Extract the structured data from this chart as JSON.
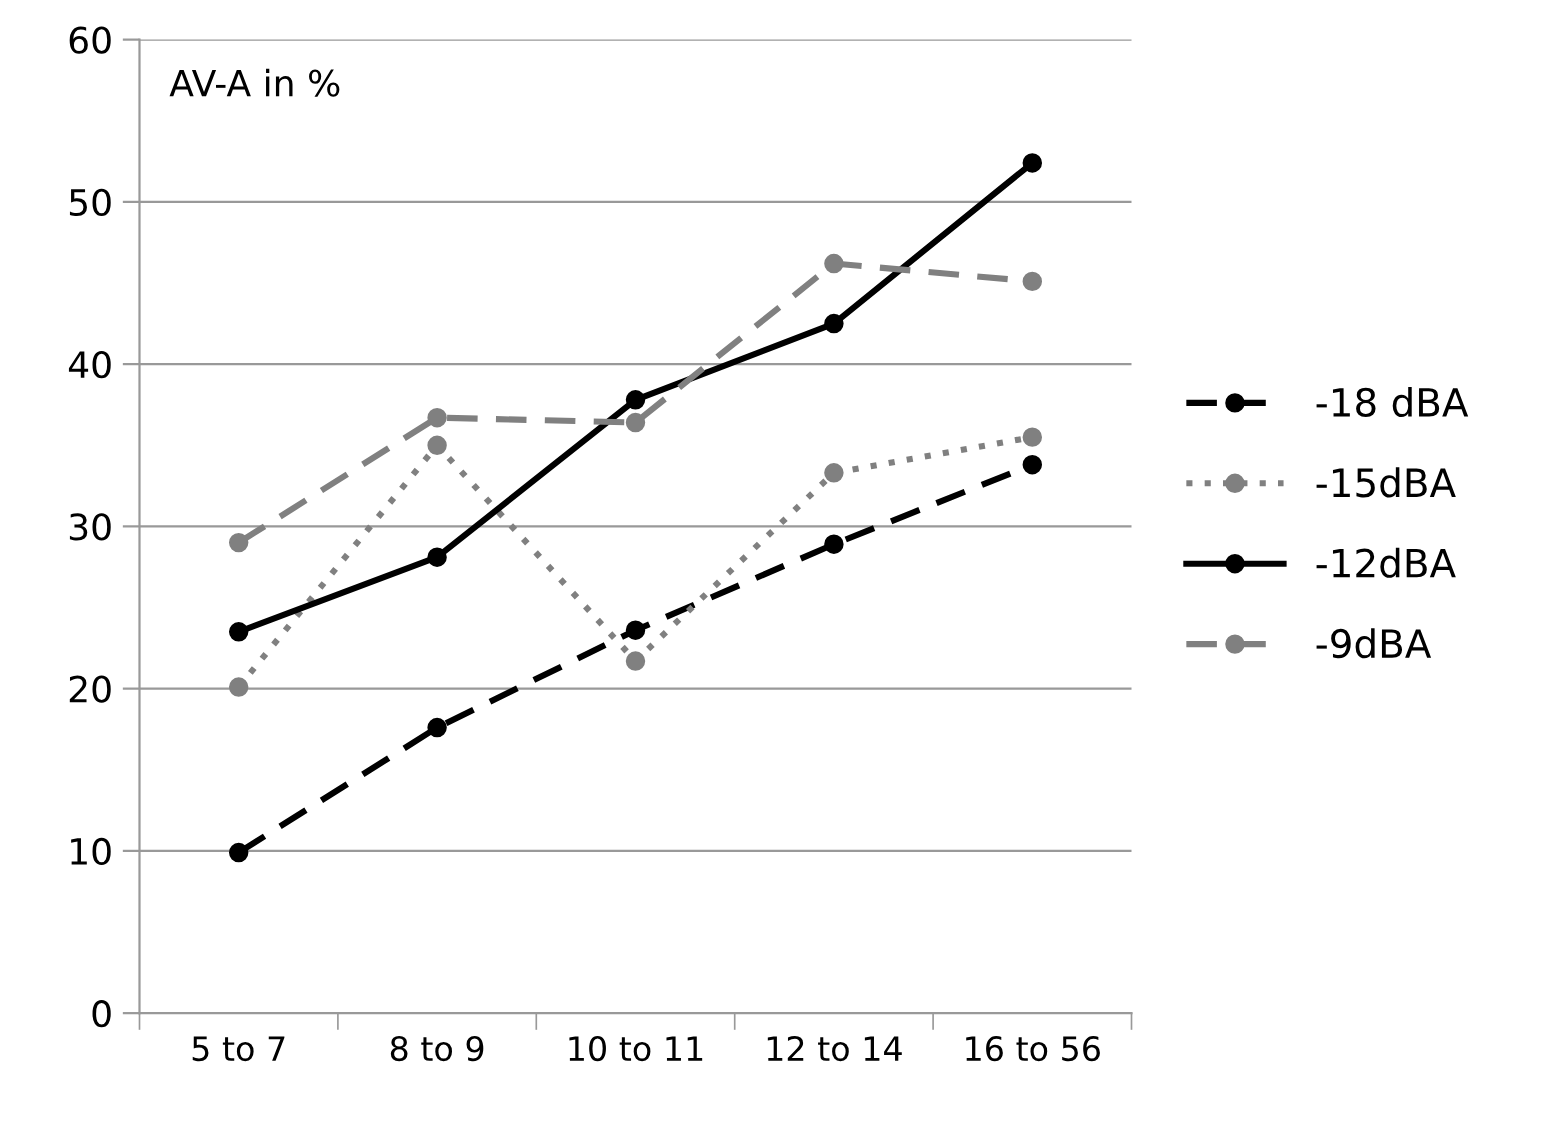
{
  "chart_data": {
    "type": "line",
    "categories": [
      "5 to 7",
      "8 to 9",
      "10 to 11",
      "12 to 14",
      "16 to 56"
    ],
    "series": [
      {
        "name": "-18 dBA",
        "color": "#000000",
        "line_style": "dashed",
        "values": [
          9.9,
          17.6,
          23.6,
          28.9,
          33.8
        ]
      },
      {
        "name": "-15dBA",
        "color": "#808080",
        "line_style": "dotted",
        "values": [
          20.1,
          35.0,
          21.7,
          33.3,
          35.5
        ]
      },
      {
        "name": "-12dBA",
        "color": "#000000",
        "line_style": "solid",
        "values": [
          23.5,
          28.1,
          37.8,
          42.5,
          52.4
        ]
      },
      {
        "name": "-9dBA",
        "color": "#808080",
        "line_style": "dashed",
        "values": [
          29.0,
          36.7,
          36.4,
          46.2,
          45.1
        ]
      }
    ],
    "annotations": [
      "AV-A in %"
    ],
    "ylim": [
      0,
      60
    ],
    "yticks": [
      0,
      10,
      20,
      30,
      40,
      50,
      60
    ],
    "grid": "y",
    "legend": "right",
    "marker": "circle"
  }
}
